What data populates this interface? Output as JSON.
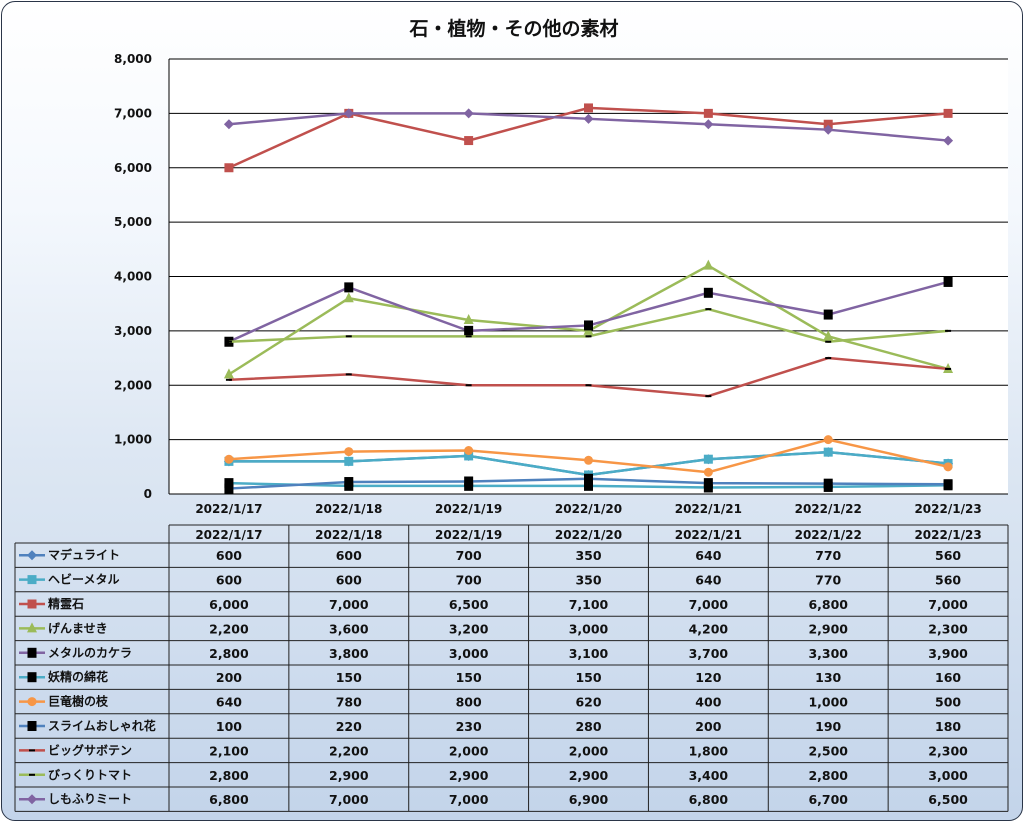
{
  "chart_data": {
    "type": "line",
    "title": "石・植物・その他の素材",
    "categories": [
      "2022/1/17",
      "2022/1/18",
      "2022/1/19",
      "2022/1/20",
      "2022/1/21",
      "2022/1/22",
      "2022/1/23"
    ],
    "ylim": [
      0,
      8000
    ],
    "yticks": [
      "0",
      "1,000",
      "2,000",
      "3,000",
      "4,000",
      "5,000",
      "6,000",
      "7,000",
      "8,000"
    ],
    "grid": true,
    "legend": "data-table",
    "series": [
      {
        "name": "マデュライト",
        "color": "#4f81bd",
        "marker": "diamond",
        "values": [
          600,
          600,
          700,
          350,
          640,
          770,
          560
        ]
      },
      {
        "name": "ヘビーメタル",
        "color": "#4bacc6",
        "marker": "square",
        "values": [
          600,
          600,
          700,
          350,
          640,
          770,
          560
        ]
      },
      {
        "name": "精霊石",
        "color": "#c0504d",
        "marker": "square",
        "values": [
          6000,
          7000,
          6500,
          7100,
          7000,
          6800,
          7000
        ]
      },
      {
        "name": "げんませき",
        "color": "#9bbb59",
        "marker": "triangle",
        "values": [
          2200,
          3600,
          3200,
          3000,
          4200,
          2900,
          2300
        ]
      },
      {
        "name": "メタルのカケラ",
        "color": "#8064a2",
        "marker": "black-square",
        "values": [
          2800,
          3800,
          3000,
          3100,
          3700,
          3300,
          3900
        ]
      },
      {
        "name": "妖精の綿花",
        "color": "#4bacc6",
        "marker": "black-square",
        "values": [
          200,
          150,
          150,
          150,
          120,
          130,
          160
        ]
      },
      {
        "name": "巨竜樹の枝",
        "color": "#f79646",
        "marker": "circle",
        "values": [
          640,
          780,
          800,
          620,
          400,
          1000,
          500
        ]
      },
      {
        "name": "スライムおしゃれ花",
        "color": "#4f81bd",
        "marker": "black-square",
        "values": [
          100,
          220,
          230,
          280,
          200,
          190,
          180
        ]
      },
      {
        "name": "ビッグサボテン",
        "color": "#c0504d",
        "marker": "dash",
        "values": [
          2100,
          2200,
          2000,
          2000,
          1800,
          2500,
          2300
        ]
      },
      {
        "name": "びっくりトマト",
        "color": "#9bbb59",
        "marker": "dash",
        "values": [
          2800,
          2900,
          2900,
          2900,
          3400,
          2800,
          3000
        ]
      },
      {
        "name": "しもふりミート",
        "color": "#8064a2",
        "marker": "diamond",
        "values": [
          6800,
          7000,
          7000,
          6900,
          6800,
          6700,
          6500
        ]
      }
    ]
  }
}
